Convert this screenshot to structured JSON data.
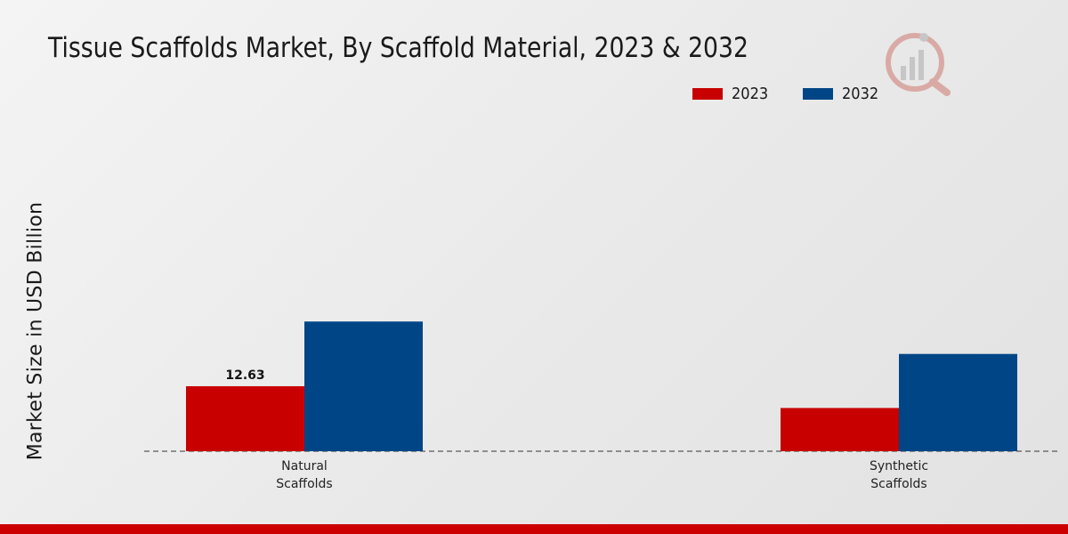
{
  "chart_data": {
    "type": "bar",
    "title": "Tissue Scaffolds Market, By Scaffold Material, 2023 & 2032",
    "ylabel": "Market Size in USD Billion",
    "xlabel": "",
    "categories": [
      [
        "Natural",
        "Scaffolds"
      ],
      [
        "Synthetic",
        "Scaffolds"
      ]
    ],
    "series": [
      {
        "name": "2023",
        "color": "#c80000",
        "values": [
          12.63,
          8.4
        ],
        "labels": [
          "12.63",
          ""
        ]
      },
      {
        "name": "2032",
        "color": "#004687",
        "values": [
          25.2,
          18.9
        ],
        "labels": [
          "",
          ""
        ]
      }
    ],
    "ylim": [
      0,
      60
    ],
    "grid": false,
    "legend_position": "top-right"
  }
}
